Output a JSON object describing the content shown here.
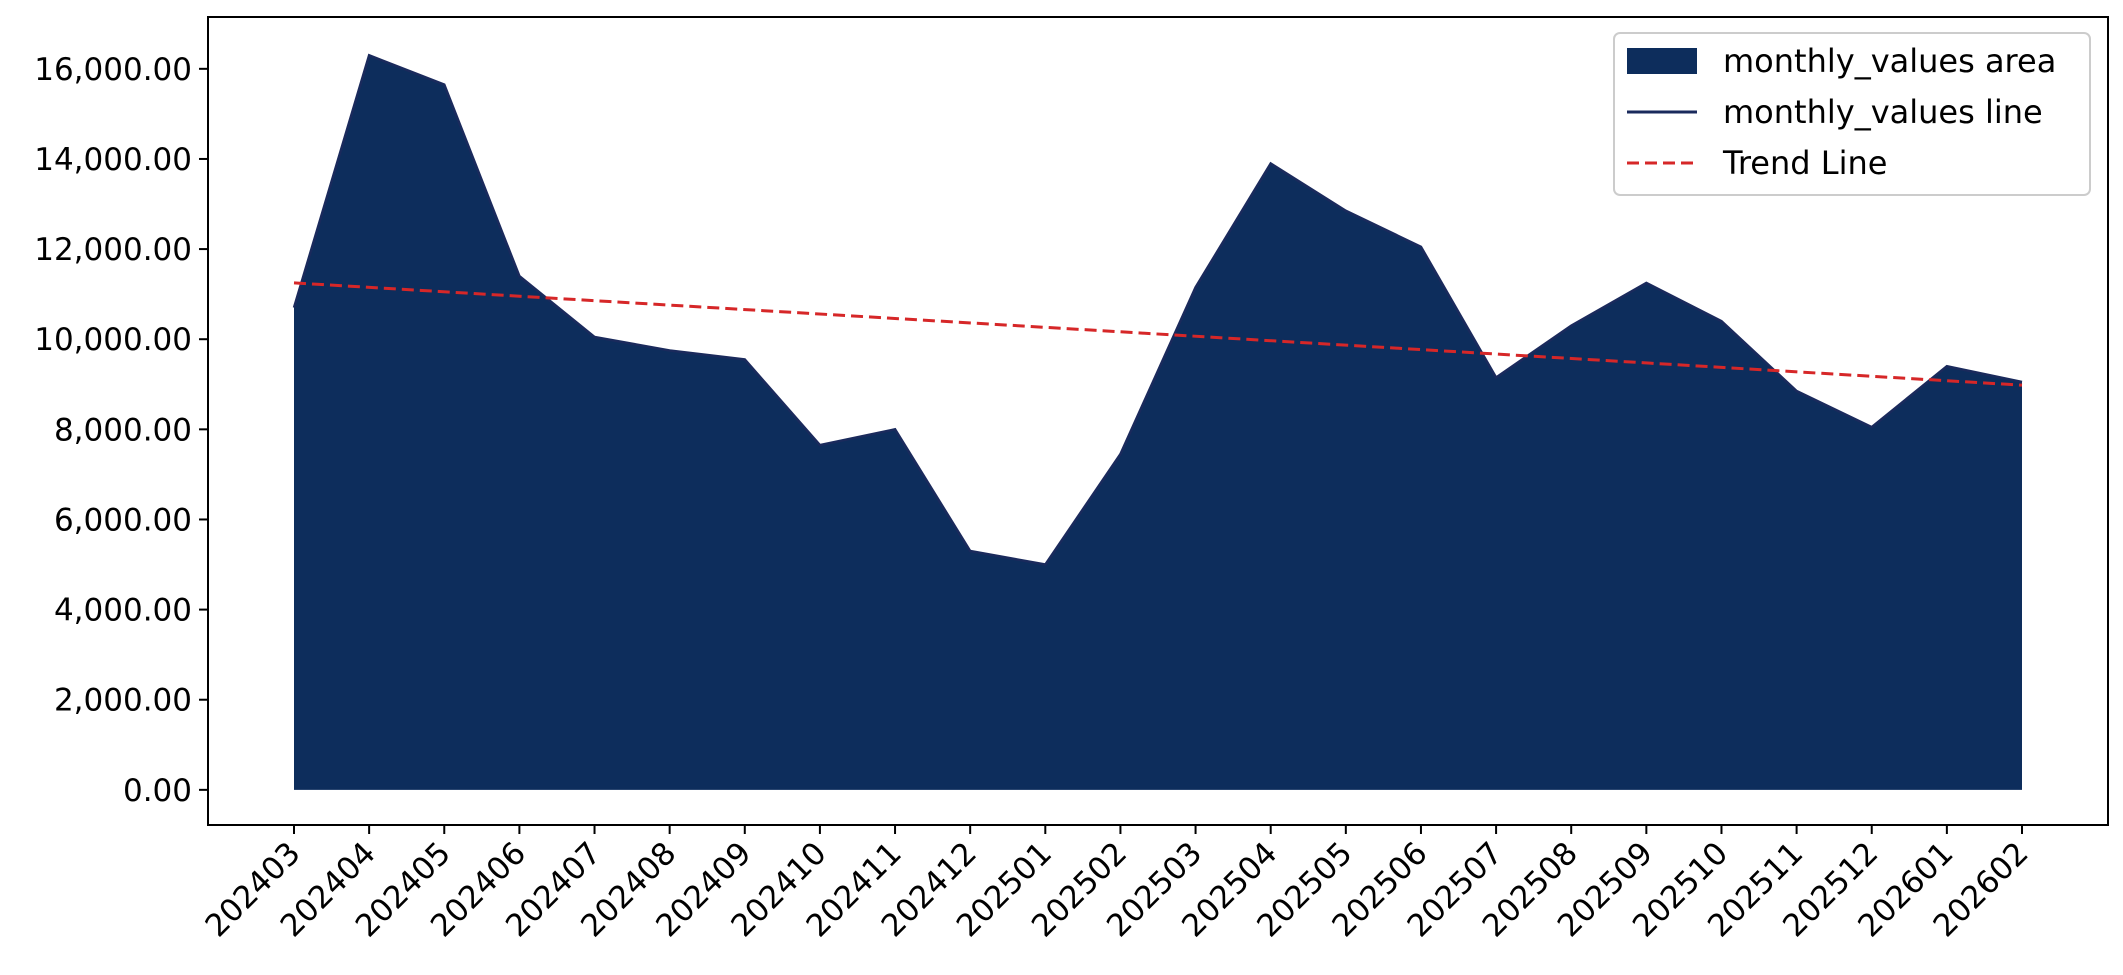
{
  "chart_data": {
    "type": "area",
    "categories": [
      "202403",
      "202404",
      "202405",
      "202406",
      "202407",
      "202408",
      "202409",
      "202410",
      "202411",
      "202412",
      "202501",
      "202502",
      "202503",
      "202504",
      "202505",
      "202506",
      "202507",
      "202508",
      "202509",
      "202510",
      "202511",
      "202512",
      "202601",
      "202602"
    ],
    "series": [
      {
        "name": "monthly_values area",
        "kind": "area",
        "color": "#0d2d5c",
        "values": [
          10700,
          16300,
          15650,
          11400,
          10050,
          9750,
          9550,
          7650,
          8000,
          5300,
          5000,
          7450,
          11150,
          13900,
          12850,
          12050,
          9150,
          10300,
          11250,
          10400,
          8850,
          8050,
          9400,
          9050
        ]
      },
      {
        "name": "monthly_values line",
        "kind": "line",
        "color": "#1a2a5c",
        "values": [
          10700,
          16300,
          15650,
          11400,
          10050,
          9750,
          9550,
          7650,
          8000,
          5300,
          5000,
          7450,
          11150,
          13900,
          12850,
          12050,
          9150,
          10300,
          11250,
          10400,
          8850,
          8050,
          9400,
          9050
        ]
      },
      {
        "name": "Trend Line",
        "kind": "trend",
        "color": "#d62728",
        "style": "dashed",
        "start": 11250,
        "end": 8980
      }
    ],
    "y_ticks": [
      "0.00",
      "2,000.00",
      "4,000.00",
      "6,000.00",
      "8,000.00",
      "10,000.00",
      "12,000.00",
      "14,000.00",
      "16,000.00"
    ],
    "y_tick_values": [
      0,
      2000,
      4000,
      6000,
      8000,
      10000,
      12000,
      14000,
      16000
    ],
    "ylim": [
      -780,
      17150
    ],
    "xlabel": "",
    "ylabel": "",
    "title": "",
    "grid": false,
    "legend_position": "top-right"
  }
}
